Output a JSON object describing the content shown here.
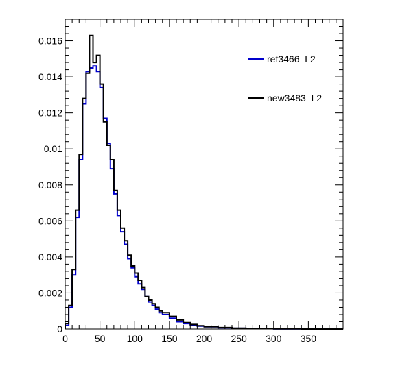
{
  "chart_data": {
    "type": "line",
    "title": "",
    "xlabel": "",
    "ylabel": "",
    "xlim": [
      0,
      400
    ],
    "ylim": [
      0,
      0.0172
    ],
    "x_ticks": [
      0,
      50,
      100,
      150,
      200,
      250,
      300,
      350
    ],
    "x_tick_labels": [
      "0",
      "50",
      "100",
      "150",
      "200",
      "250",
      "300",
      "350"
    ],
    "y_ticks": [
      0,
      0.002,
      0.004,
      0.006,
      0.008,
      0.01,
      0.012,
      0.014,
      0.016
    ],
    "y_tick_labels": [
      "0",
      "0.002",
      "0.004",
      "0.006",
      "0.008",
      "0.01",
      "0.012",
      "0.014",
      "0.016"
    ],
    "grid": false,
    "legend_position": "top-right",
    "series": [
      {
        "name": "ref3466_L2",
        "color": "#0000cc",
        "x": [
          0,
          5,
          10,
          15,
          20,
          25,
          30,
          35,
          40,
          45,
          50,
          55,
          60,
          65,
          70,
          75,
          80,
          85,
          90,
          95,
          100,
          105,
          110,
          115,
          120,
          125,
          130,
          135,
          140,
          150,
          160,
          170,
          180,
          190,
          200,
          220,
          240,
          260,
          280,
          300,
          320,
          340,
          360,
          380,
          395
        ],
        "values": [
          0.0002,
          0.0012,
          0.003,
          0.0062,
          0.0094,
          0.0125,
          0.0143,
          0.0145,
          0.0146,
          0.0143,
          0.0134,
          0.0117,
          0.0103,
          0.0089,
          0.0075,
          0.0063,
          0.0054,
          0.0047,
          0.0039,
          0.0034,
          0.0029,
          0.0025,
          0.0022,
          0.0018,
          0.0015,
          0.0013,
          0.0011,
          0.0009,
          0.0008,
          0.0006,
          0.0004,
          0.0003,
          0.00022,
          0.00016,
          0.00012,
          7e-05,
          4e-05,
          3e-05,
          2e-05,
          1e-05,
          1e-05,
          0.0,
          0.0,
          0.0,
          0.0
        ]
      },
      {
        "name": "new3483_L2",
        "color": "#000000",
        "x": [
          0,
          5,
          10,
          15,
          20,
          25,
          30,
          35,
          40,
          45,
          50,
          55,
          60,
          65,
          70,
          75,
          80,
          85,
          90,
          95,
          100,
          105,
          110,
          115,
          120,
          125,
          130,
          135,
          140,
          150,
          160,
          170,
          180,
          190,
          200,
          220,
          240,
          260,
          280,
          300,
          320,
          340,
          360,
          380,
          395
        ],
        "values": [
          0.0003,
          0.0013,
          0.0033,
          0.0066,
          0.0097,
          0.0128,
          0.0142,
          0.0163,
          0.0148,
          0.0152,
          0.0136,
          0.0115,
          0.0102,
          0.0094,
          0.0077,
          0.0066,
          0.0056,
          0.0049,
          0.0041,
          0.0035,
          0.0031,
          0.0027,
          0.0023,
          0.0018,
          0.0016,
          0.0014,
          0.0012,
          0.001,
          0.0009,
          0.0007,
          0.0005,
          0.00035,
          0.00025,
          0.00018,
          0.00013,
          8e-05,
          5e-05,
          3e-05,
          2e-05,
          1e-05,
          1e-05,
          0.0,
          0.0,
          0.0,
          0.0
        ]
      }
    ]
  }
}
